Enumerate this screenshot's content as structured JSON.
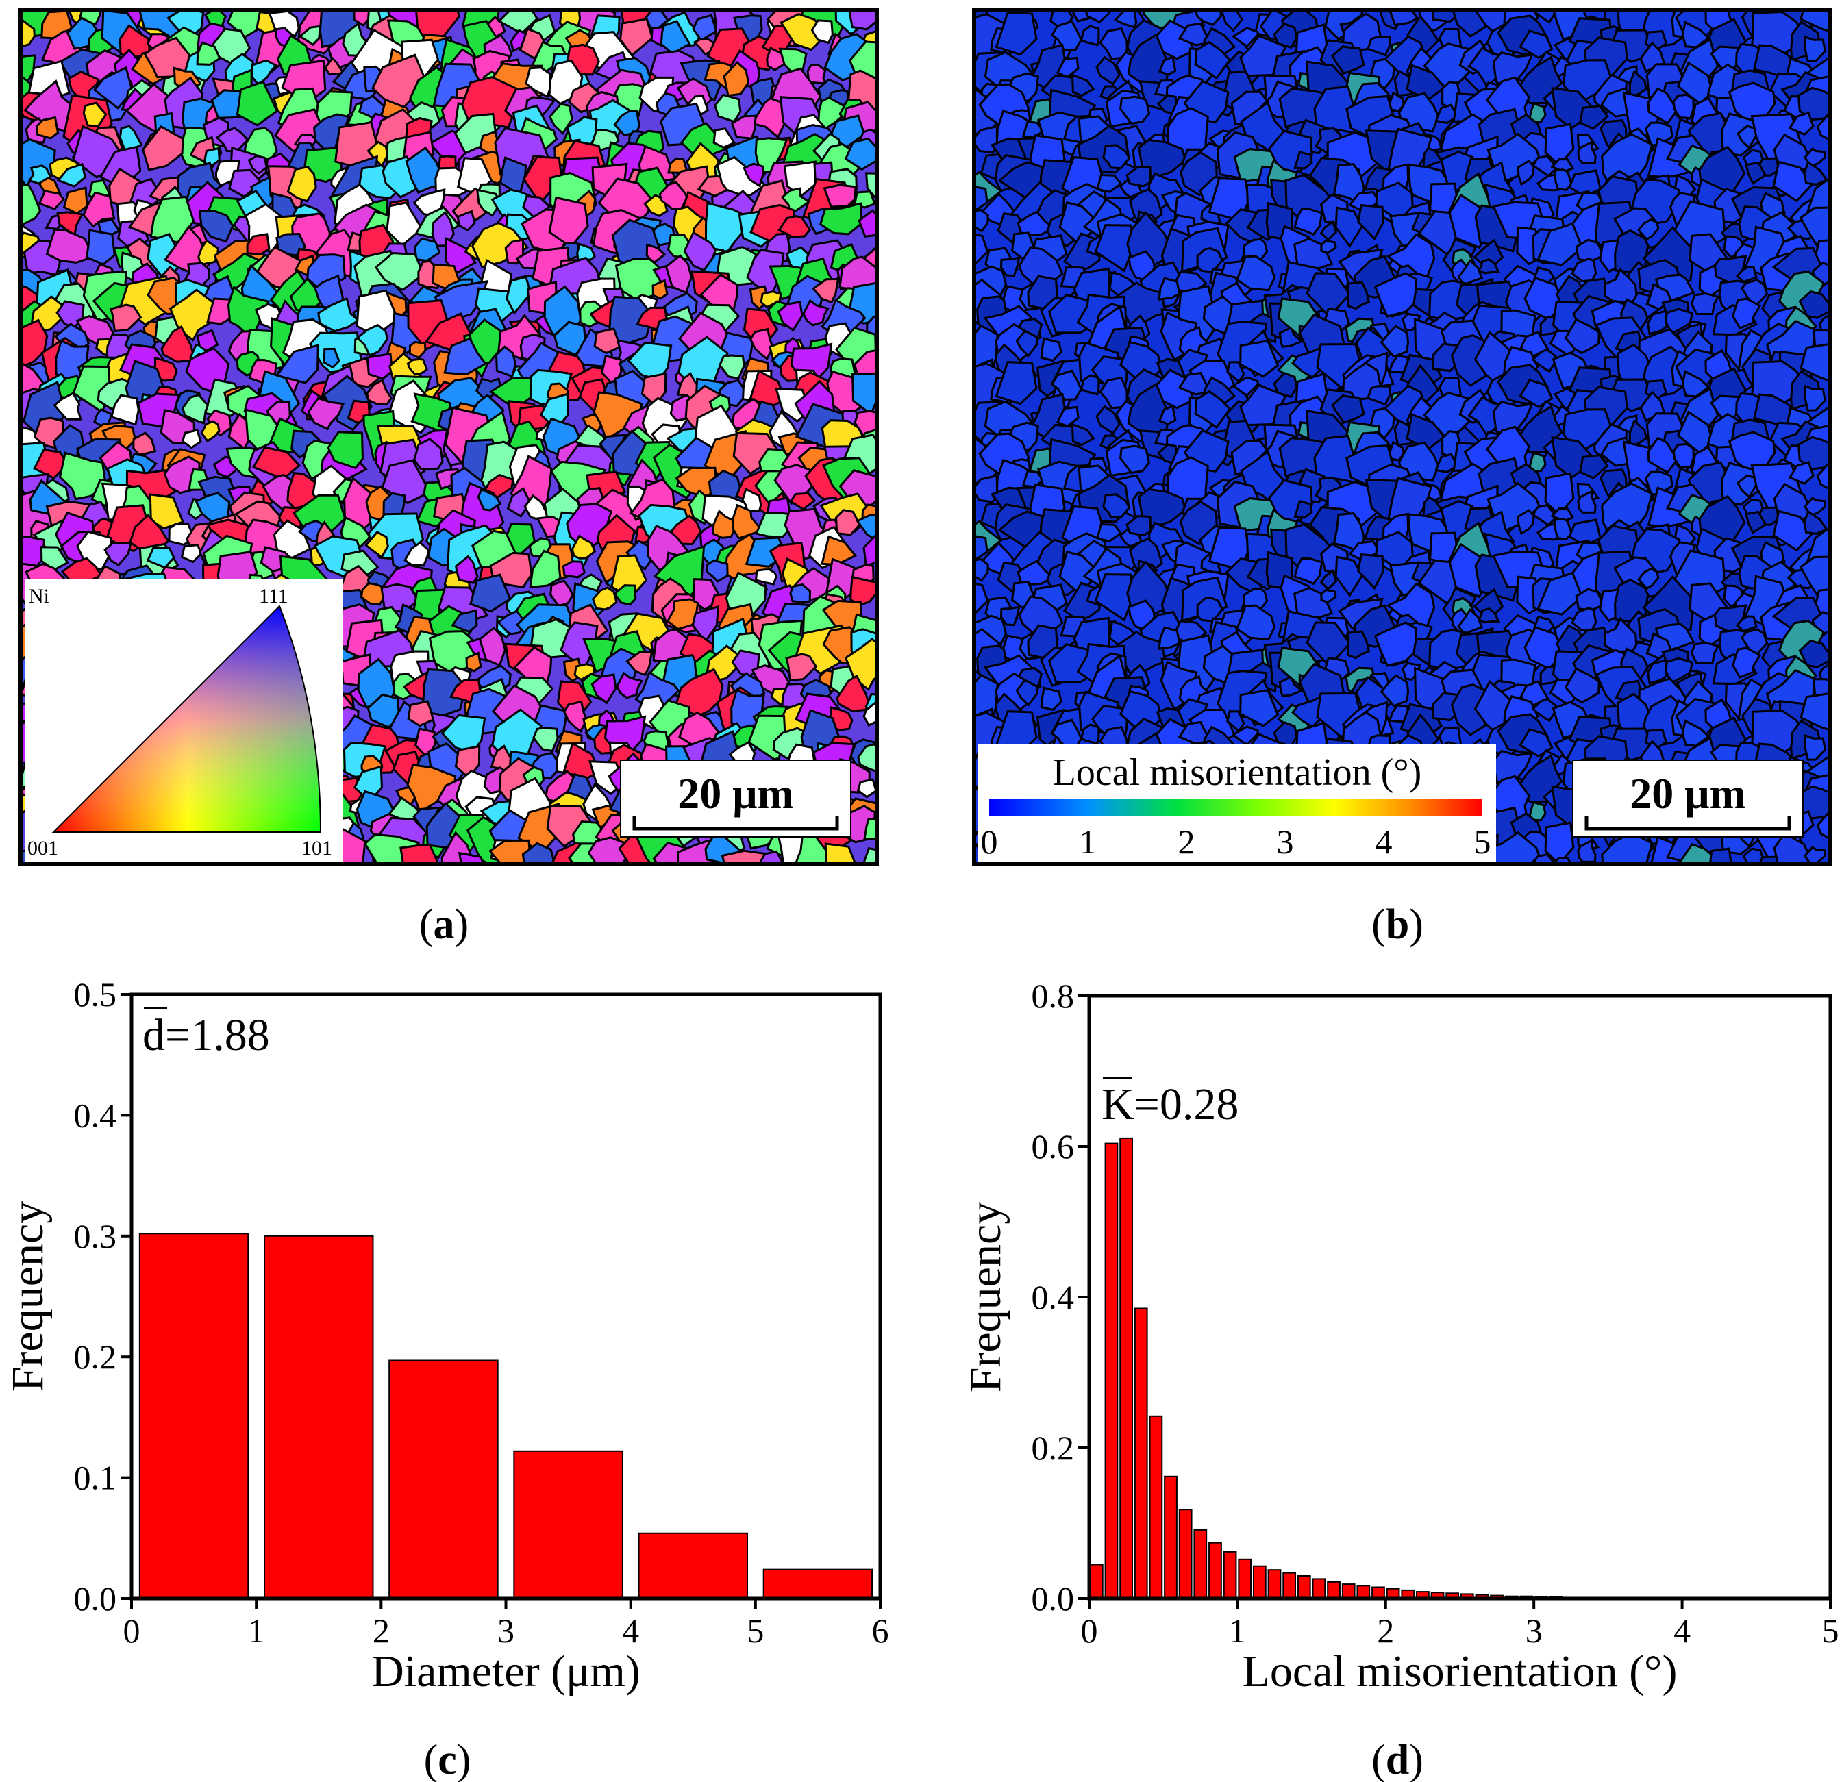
{
  "panels": {
    "a": {
      "label": "a",
      "scale_bar": "20 μm",
      "ipf_key": {
        "phase": "Ni",
        "corner_001": "001",
        "corner_101": "101",
        "corner_111": "111"
      }
    },
    "b": {
      "label": "b",
      "scale_bar": "20 μm",
      "colorbar": {
        "title": "Local misorientation (°)",
        "ticks": [
          "0",
          "1",
          "2",
          "3",
          "4",
          "5"
        ]
      }
    },
    "c": {
      "label": "c"
    },
    "d": {
      "label": "d"
    }
  },
  "colors": {
    "bar": "#ff0000",
    "ebsd_blue": "#1438e0"
  },
  "chart_data": [
    {
      "type": "bar",
      "panel": "c",
      "xlabel": "Diameter (μm)",
      "ylabel": "Frequency",
      "annotation": {
        "symbol": "d",
        "value": "=1.88"
      },
      "xlim": [
        0,
        6
      ],
      "ylim": [
        0,
        0.5
      ],
      "xticks": [
        "0",
        "1",
        "2",
        "3",
        "4",
        "5",
        "6"
      ],
      "yticks": [
        "0.0",
        "0.1",
        "0.2",
        "0.3",
        "0.4",
        "0.5"
      ],
      "bin_width": 1,
      "bin_starts": [
        0,
        1,
        2,
        3,
        4,
        5
      ],
      "values": [
        0.302,
        0.3,
        0.197,
        0.122,
        0.054,
        0.024
      ]
    },
    {
      "type": "bar",
      "panel": "d",
      "xlabel": "Local misorientation (°)",
      "ylabel": "Frequency",
      "annotation": {
        "symbol": "K",
        "value": "=0.28"
      },
      "xlim": [
        0,
        5
      ],
      "ylim": [
        0,
        0.8
      ],
      "xticks": [
        "0",
        "1",
        "2",
        "3",
        "4",
        "5"
      ],
      "yticks": [
        "0.0",
        "0.2",
        "0.4",
        "0.6",
        "0.8"
      ],
      "bin_width": 0.1,
      "bin_starts": [
        0,
        0.1,
        0.2,
        0.3,
        0.4,
        0.5,
        0.6,
        0.7,
        0.8,
        0.9,
        1.0,
        1.1,
        1.2,
        1.3,
        1.4,
        1.5,
        1.6,
        1.7,
        1.8,
        1.9,
        2.0,
        2.1,
        2.2,
        2.3,
        2.4,
        2.5,
        2.6,
        2.7,
        2.8,
        2.9,
        3.0,
        3.1,
        3.2,
        3.3
      ],
      "values": [
        0.045,
        0.604,
        0.611,
        0.385,
        0.242,
        0.162,
        0.118,
        0.091,
        0.074,
        0.062,
        0.052,
        0.043,
        0.038,
        0.034,
        0.03,
        0.026,
        0.022,
        0.019,
        0.017,
        0.015,
        0.013,
        0.011,
        0.009,
        0.008,
        0.007,
        0.006,
        0.005,
        0.004,
        0.003,
        0.003,
        0.002,
        0.002,
        0.001,
        0.001
      ]
    }
  ]
}
